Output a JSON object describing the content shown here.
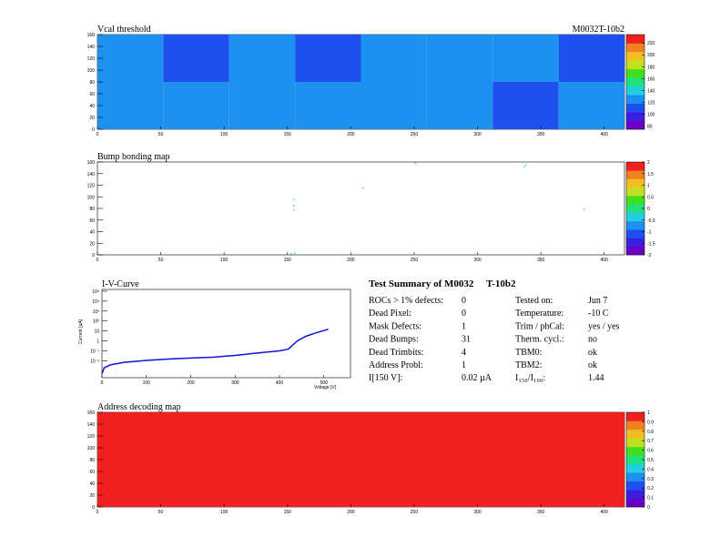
{
  "chart_data": [
    {
      "type": "heatmap",
      "title": "Vcal threshold",
      "corner_label": "M0032T-10b2",
      "xlim": [
        0,
        416
      ],
      "ylim": [
        0,
        160
      ],
      "xticks": [
        0,
        50,
        100,
        150,
        200,
        250,
        300,
        350,
        400
      ],
      "yticks": [
        0,
        20,
        40,
        60,
        80,
        100,
        120,
        140,
        160
      ],
      "xbins": [
        0,
        52,
        104,
        156,
        208,
        260,
        312,
        364,
        416
      ],
      "ybins": [
        0,
        80,
        160
      ],
      "values": [
        [
          118,
          126,
          130,
          122,
          126,
          124,
          112,
          124
        ],
        [
          124,
          112,
          126,
          112,
          128,
          122,
          126,
          112
        ]
      ],
      "zlim": [
        75,
        234
      ],
      "zticks": [
        80,
        100,
        120,
        140,
        160,
        180,
        200,
        220
      ],
      "palette": [
        "#6a00c8",
        "#3a1fe0",
        "#1e50f0",
        "#1e90f0",
        "#20d0e0",
        "#20e080",
        "#40e020",
        "#c0e020",
        "#f0c020",
        "#f08020",
        "#f02020"
      ]
    },
    {
      "type": "scatter",
      "title": "Bump bonding map",
      "xlim": [
        0,
        416
      ],
      "ylim": [
        0,
        160
      ],
      "xticks": [
        0,
        50,
        100,
        150,
        200,
        250,
        300,
        350,
        400
      ],
      "yticks": [
        0,
        20,
        40,
        60,
        80,
        100,
        120,
        140,
        160
      ],
      "x": [
        155,
        155,
        155,
        153,
        156,
        210,
        251,
        338,
        337,
        384
      ],
      "y": [
        95,
        85,
        77,
        2,
        3,
        115,
        158,
        155,
        152,
        78
      ],
      "values": [
        0,
        0,
        0,
        0,
        0,
        0,
        0,
        0,
        0,
        0
      ],
      "zlim": [
        -2,
        2
      ],
      "zticks": [
        -2,
        -1.5,
        -1,
        -0.5,
        0,
        0.5,
        1,
        1.5,
        2
      ],
      "palette": [
        "#6a00c8",
        "#3a1fe0",
        "#1e50f0",
        "#1e90f0",
        "#20d0e0",
        "#20e080",
        "#40e020",
        "#c0e020",
        "#f0c020",
        "#f08020",
        "#f02020"
      ]
    },
    {
      "type": "line",
      "title": "I-V-Curve",
      "x_label": "Voltage [V]",
      "y_label": "Current [µA]",
      "log_y": true,
      "xlim": [
        0,
        560
      ],
      "ylim": [
        0.0002,
        150000
      ],
      "xticks": [
        0,
        100,
        200,
        300,
        400,
        500
      ],
      "yticks": [
        {
          "value": 0.01,
          "label": "10⁻²"
        },
        {
          "value": 0.1,
          "label": "10⁻¹"
        },
        1,
        10,
        {
          "value": 100,
          "label": "10²"
        },
        {
          "value": 1000,
          "label": "10³"
        },
        {
          "value": 10000,
          "label": "10⁴"
        },
        {
          "value": 100000,
          "label": "10⁵"
        }
      ],
      "x": [
        0,
        5,
        20,
        50,
        100,
        150,
        200,
        250,
        300,
        350,
        400,
        420,
        440,
        460,
        480,
        510
      ],
      "series": [
        {
          "color": "#1010e0",
          "values": [
            0.0005,
            0.002,
            0.004,
            0.007,
            0.011,
            0.015,
            0.019,
            0.023,
            0.035,
            0.06,
            0.1,
            0.15,
            1,
            3,
            6,
            15
          ]
        }
      ]
    },
    {
      "type": "heatmap",
      "title": "Address decoding map",
      "xlim": [
        0,
        416
      ],
      "ylim": [
        0,
        160
      ],
      "xticks": [
        0,
        50,
        100,
        150,
        200,
        250,
        300,
        350,
        400
      ],
      "yticks": [
        0,
        20,
        40,
        60,
        80,
        100,
        120,
        140,
        160
      ],
      "xbins": [
        0,
        416
      ],
      "ybins": [
        0,
        160
      ],
      "values": [
        [
          1
        ]
      ],
      "zlim": [
        0,
        1
      ],
      "zticks": [
        0,
        0.1,
        0.2,
        0.3,
        0.4,
        0.5,
        0.6,
        0.7,
        0.8,
        0.9,
        1
      ],
      "palette": [
        "#6a00c8",
        "#3a1fe0",
        "#1e50f0",
        "#1e90f0",
        "#20d0e0",
        "#20e080",
        "#40e020",
        "#c0e020",
        "#f0c020",
        "#f08020",
        "#f02020"
      ]
    }
  ],
  "summary": {
    "title": "Test Summary of M0032     T-10b2",
    "rows": [
      [
        "ROCs > 1% defects:",
        "0",
        "Tested on:",
        "Jun 7"
      ],
      [
        "Dead Pixel:",
        "0",
        "Temperature:",
        "-10 C"
      ],
      [
        "Mask Defects:",
        "1",
        "Trim / phCal:",
        "yes / yes"
      ],
      [
        "Dead Bumps:",
        "31",
        "Therm. cycl.:",
        "no"
      ],
      [
        "Dead Trimbits:",
        "4",
        "TBM0:",
        "ok"
      ],
      [
        "Address Probl:",
        "1",
        "TBM2:",
        "ok"
      ],
      [
        "I[150 V]:",
        "0.02 µA",
        "I₁₅₀/I₁₀₀:",
        "1.44"
      ]
    ]
  }
}
